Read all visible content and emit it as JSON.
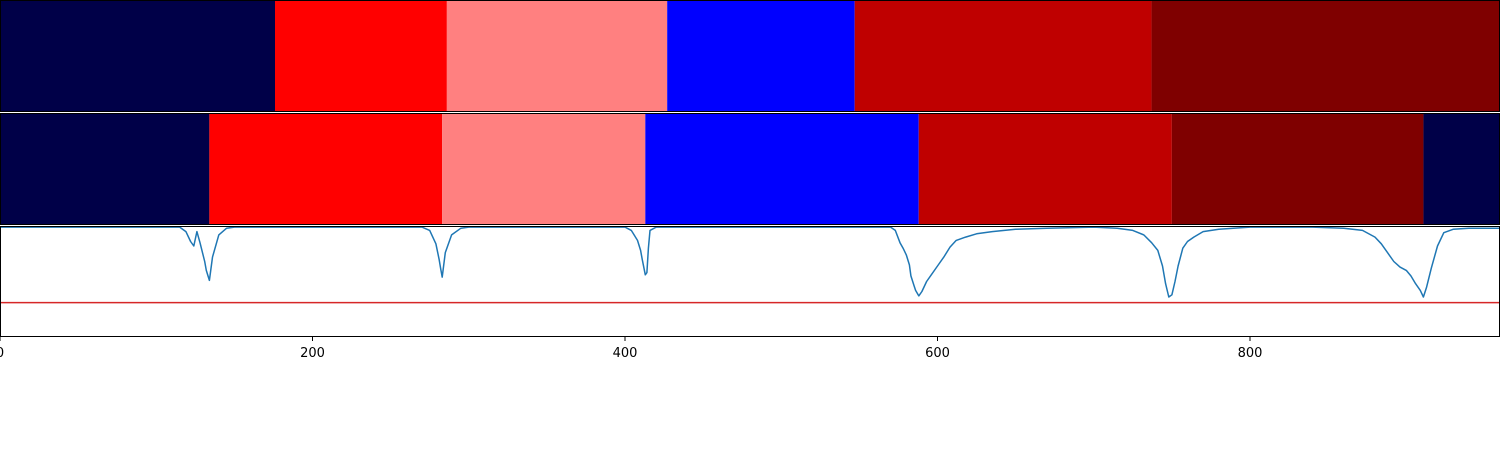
{
  "chart_data": {
    "type": "segmentation-comparison",
    "xlim": [
      0,
      960
    ],
    "x_ticks": [
      {
        "value": 0,
        "label": "0"
      },
      {
        "value": 200,
        "label": "200"
      },
      {
        "value": 400,
        "label": "400"
      },
      {
        "value": 600,
        "label": "600"
      },
      {
        "value": 800,
        "label": "800"
      }
    ],
    "colors": {
      "navy": "#000048",
      "red": "#ff0000",
      "salmon": "#ff8080",
      "blue": "#0000ff",
      "darkred": "#bf0000",
      "maroon": "#7f0000",
      "curve": "#1f77b4",
      "threshold": "#d62728"
    },
    "rows": [
      {
        "name": "segmentation-top",
        "segments": [
          {
            "start": 0,
            "end": 176,
            "color": "navy"
          },
          {
            "start": 176,
            "end": 286,
            "color": "red"
          },
          {
            "start": 286,
            "end": 427,
            "color": "salmon"
          },
          {
            "start": 427,
            "end": 547,
            "color": "blue"
          },
          {
            "start": 547,
            "end": 737,
            "color": "darkred"
          },
          {
            "start": 737,
            "end": 960,
            "color": "maroon"
          }
        ]
      },
      {
        "name": "segmentation-bottom",
        "segments": [
          {
            "start": 0,
            "end": 134,
            "color": "navy"
          },
          {
            "start": 134,
            "end": 283,
            "color": "red"
          },
          {
            "start": 283,
            "end": 413,
            "color": "salmon"
          },
          {
            "start": 413,
            "end": 588,
            "color": "blue"
          },
          {
            "start": 588,
            "end": 750,
            "color": "darkred"
          },
          {
            "start": 750,
            "end": 911,
            "color": "maroon"
          },
          {
            "start": 911,
            "end": 960,
            "color": "navy"
          }
        ]
      }
    ],
    "curve": {
      "ylim": [
        0,
        1
      ],
      "threshold": 0.31,
      "points": [
        [
          0,
          0.99
        ],
        [
          115,
          0.99
        ],
        [
          119,
          0.95
        ],
        [
          122,
          0.86
        ],
        [
          124,
          0.82
        ],
        [
          126,
          0.95
        ],
        [
          128,
          0.85
        ],
        [
          131,
          0.68
        ],
        [
          132,
          0.6
        ],
        [
          134,
          0.51
        ],
        [
          136,
          0.72
        ],
        [
          140,
          0.92
        ],
        [
          145,
          0.98
        ],
        [
          150,
          0.99
        ],
        [
          270,
          0.99
        ],
        [
          275,
          0.96
        ],
        [
          279,
          0.84
        ],
        [
          281,
          0.7
        ],
        [
          282,
          0.62
        ],
        [
          283,
          0.54
        ],
        [
          285,
          0.76
        ],
        [
          289,
          0.92
        ],
        [
          295,
          0.98
        ],
        [
          300,
          0.99
        ],
        [
          400,
          0.99
        ],
        [
          404,
          0.96
        ],
        [
          408,
          0.87
        ],
        [
          410,
          0.78
        ],
        [
          411,
          0.7
        ],
        [
          413,
          0.56
        ],
        [
          414,
          0.58
        ],
        [
          415,
          0.8
        ],
        [
          416,
          0.96
        ],
        [
          420,
          0.99
        ],
        [
          570,
          0.99
        ],
        [
          573,
          0.96
        ],
        [
          576,
          0.85
        ],
        [
          578,
          0.8
        ],
        [
          580,
          0.74
        ],
        [
          582,
          0.65
        ],
        [
          583,
          0.55
        ],
        [
          585,
          0.46
        ],
        [
          586,
          0.42
        ],
        [
          588,
          0.37
        ],
        [
          590,
          0.41
        ],
        [
          593,
          0.5
        ],
        [
          596,
          0.56
        ],
        [
          600,
          0.64
        ],
        [
          604,
          0.72
        ],
        [
          608,
          0.81
        ],
        [
          612,
          0.87
        ],
        [
          618,
          0.9
        ],
        [
          625,
          0.93
        ],
        [
          635,
          0.95
        ],
        [
          650,
          0.97
        ],
        [
          670,
          0.98
        ],
        [
          700,
          0.99
        ],
        [
          715,
          0.98
        ],
        [
          725,
          0.96
        ],
        [
          732,
          0.92
        ],
        [
          737,
          0.85
        ],
        [
          741,
          0.78
        ],
        [
          744,
          0.64
        ],
        [
          746,
          0.48
        ],
        [
          748,
          0.36
        ],
        [
          750,
          0.38
        ],
        [
          752,
          0.5
        ],
        [
          754,
          0.64
        ],
        [
          757,
          0.8
        ],
        [
          760,
          0.86
        ],
        [
          764,
          0.9
        ],
        [
          770,
          0.95
        ],
        [
          780,
          0.97
        ],
        [
          800,
          0.99
        ],
        [
          840,
          0.99
        ],
        [
          860,
          0.98
        ],
        [
          872,
          0.96
        ],
        [
          880,
          0.9
        ],
        [
          884,
          0.84
        ],
        [
          888,
          0.76
        ],
        [
          892,
          0.68
        ],
        [
          896,
          0.63
        ],
        [
          900,
          0.6
        ],
        [
          903,
          0.55
        ],
        [
          906,
          0.48
        ],
        [
          909,
          0.42
        ],
        [
          911,
          0.36
        ],
        [
          913,
          0.45
        ],
        [
          916,
          0.62
        ],
        [
          920,
          0.82
        ],
        [
          924,
          0.94
        ],
        [
          930,
          0.97
        ],
        [
          940,
          0.98
        ],
        [
          960,
          0.98
        ]
      ]
    }
  }
}
